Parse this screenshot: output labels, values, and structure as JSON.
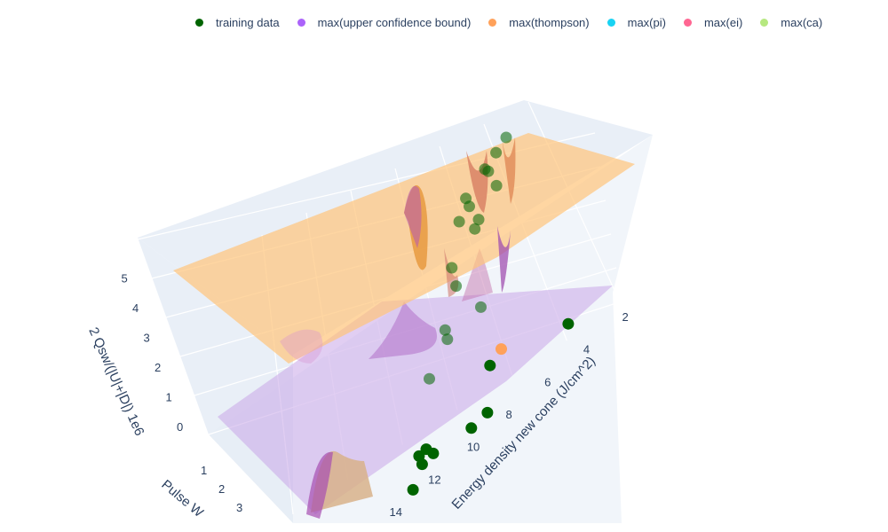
{
  "chart_data": {
    "type": "scatter3d_surface",
    "xlabel": "Energy density new cone (J/cm^2)",
    "ylabel": "Pulse W",
    "zlabel": "2 Qsw/(|U|+|D|) 1e6",
    "x_ticks": [
      "2",
      "4",
      "6",
      "8",
      "10",
      "12",
      "14"
    ],
    "y_ticks": [
      "1",
      "2",
      "3"
    ],
    "z_ticks": [
      "0",
      "1",
      "2",
      "3",
      "4",
      "5"
    ],
    "legend": [
      {
        "label": "training data",
        "color": "#006400"
      },
      {
        "label": "max(upper confidence bound)",
        "color": "#ab63fa"
      },
      {
        "label": "max(thompson)",
        "color": "#ffa15a"
      },
      {
        "label": "max(pi)",
        "color": "#19d3f3"
      },
      {
        "label": "max(ei)",
        "color": "#ff6692"
      },
      {
        "label": "max(ca)",
        "color": "#b6e880"
      }
    ],
    "surfaces": [
      {
        "name": "upper-surface",
        "color": "#ffc57a"
      },
      {
        "name": "lower-surface",
        "color": "#c9a6e8"
      }
    ],
    "training_points": [
      {
        "x": 2.0,
        "y": 1.0,
        "z": 5.0
      },
      {
        "x": 2.5,
        "y": 1.1,
        "z": 4.9
      },
      {
        "x": 3.0,
        "y": 1.2,
        "z": 4.7
      },
      {
        "x": 3.5,
        "y": 1.0,
        "z": 4.8
      },
      {
        "x": 4.0,
        "y": 1.4,
        "z": 4.6
      },
      {
        "x": 4.5,
        "y": 1.2,
        "z": 4.4
      },
      {
        "x": 5.0,
        "y": 1.3,
        "z": 4.3
      },
      {
        "x": 2.2,
        "y": 1.6,
        "z": 4.3
      },
      {
        "x": 3.2,
        "y": 1.8,
        "z": 4.0
      },
      {
        "x": 4.2,
        "y": 1.5,
        "z": 3.9
      },
      {
        "x": 5.5,
        "y": 1.7,
        "z": 3.6
      },
      {
        "x": 6.0,
        "y": 1.6,
        "z": 3.2
      },
      {
        "x": 7.0,
        "y": 1.8,
        "z": 2.6
      },
      {
        "x": 8.0,
        "y": 1.4,
        "z": 2.4
      },
      {
        "x": 8.5,
        "y": 1.9,
        "z": 2.0
      },
      {
        "x": 6.5,
        "y": 1.2,
        "z": 2.4
      },
      {
        "x": 9.0,
        "y": 1.1,
        "z": 0.4
      },
      {
        "x": 9.5,
        "y": 1.3,
        "z": 0.4
      },
      {
        "x": 8.0,
        "y": 1.0,
        "z": 1.2
      },
      {
        "x": 11.0,
        "y": 1.5,
        "z": 0.6
      },
      {
        "x": 12.0,
        "y": 1.1,
        "z": 0.8
      },
      {
        "x": 12.2,
        "y": 1.2,
        "z": 0.8
      },
      {
        "x": 12.5,
        "y": 1.1,
        "z": 0.6
      },
      {
        "x": 13.0,
        "y": 1.3,
        "z": 0.3
      },
      {
        "x": 4.5,
        "y": 0.9,
        "z": 0.6
      }
    ],
    "thompson_point": {
      "x": 7.0,
      "y": 1.1,
      "z": 1.3
    }
  }
}
